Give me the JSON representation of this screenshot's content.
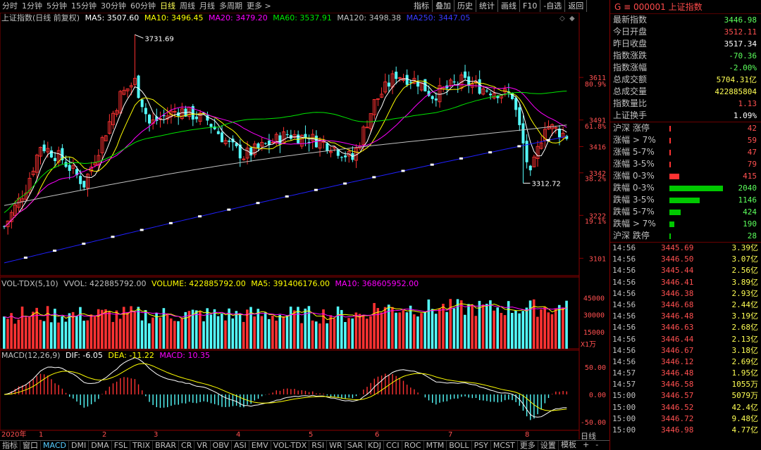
{
  "periods": [
    "分时",
    "1分钟",
    "5分钟",
    "15分钟",
    "30分钟",
    "60分钟",
    "日线",
    "周线",
    "月线",
    "多周期",
    "更多 >"
  ],
  "active_period": "日线",
  "tools": [
    "指标",
    "叠加",
    "历史",
    "统计",
    "画线",
    "F10",
    "-自选",
    "返回"
  ],
  "main_legend": {
    "title": "上证指数(日线 前复权)",
    "ma5": "MA5: 3507.60",
    "ma10": "MA10: 3496.45",
    "ma20": "MA20: 3479.20",
    "ma60": "MA60: 3537.91",
    "ma120": "MA120: 3498.38",
    "ma250": "MA250: 3447.05"
  },
  "vol_legend": {
    "name": "VOL-TDX(5,10)",
    "vvol": "VVOL: 422885792.00",
    "volume": "VOLUME: 422885792.00",
    "ma5": "MA5: 391406176.00",
    "ma10": "MA10: 368605952.00"
  },
  "macd_legend": {
    "name": "MACD(12,26,9)",
    "dif": "DIF: -6.05",
    "dea": "DEA: -11.22",
    "macd": "MACD: 10.35"
  },
  "annotations": {
    "high": "3731.69",
    "low": "3312.72"
  },
  "price_axis": [
    "3611",
    "80.9%",
    "3491",
    "61.8%",
    "3416",
    "3342",
    "38.2%",
    "3222",
    "19.1%",
    "3101"
  ],
  "vol_axis": [
    "45000",
    "30000",
    "15000",
    "X1万"
  ],
  "macd_axis": [
    "50.00",
    "0.00",
    "-50.00"
  ],
  "dates": [
    "2020年",
    "1",
    "2",
    "3",
    "4",
    "5",
    "6",
    "7",
    "8"
  ],
  "colors": {
    "up": "#ff3232",
    "down": "#54fcfc",
    "ma5": "#ffffff",
    "ma10": "#ffff00",
    "ma20": "#ff00ff",
    "ma60": "#00e600",
    "ma120": "#c0c0c0",
    "ma250": "#2020ff"
  },
  "quote": {
    "code_label": "G ≡ 000001  上证指数",
    "rows": [
      {
        "label": "最新指数",
        "value": "3446.98",
        "color": "#5cff5c"
      },
      {
        "label": "今日开盘",
        "value": "3512.11",
        "color": "#ff5050"
      },
      {
        "label": "昨日收盘",
        "value": "3517.34",
        "color": "#ffffff"
      },
      {
        "label": "指数涨跌",
        "value": "-70.36",
        "color": "#5cff5c"
      },
      {
        "label": "指数涨幅",
        "value": "-2.00%",
        "color": "#5cff5c"
      },
      {
        "label": "总成交额",
        "value": "5704.31亿",
        "color": "#ffff54"
      },
      {
        "label": "总成交量",
        "value": "422885804",
        "color": "#ffff54"
      },
      {
        "label": "指数量比",
        "value": "1.13",
        "color": "#ff5050"
      },
      {
        "label": "上证换手",
        "value": "1.09%",
        "color": "#ffffff"
      }
    ],
    "breadth": [
      {
        "label": "沪深 涨停",
        "value": "42",
        "pct": 0.01,
        "color": "#ff3232"
      },
      {
        "label": "涨幅 > 7%",
        "value": "59",
        "pct": 0.01,
        "color": "#ff3232"
      },
      {
        "label": "涨幅 5-7%",
        "value": "47",
        "pct": 0.01,
        "color": "#ff3232"
      },
      {
        "label": "涨幅 3-5%",
        "value": "79",
        "pct": 0.03,
        "color": "#ff3232"
      },
      {
        "label": "涨幅 0-3%",
        "value": "415",
        "pct": 0.18,
        "color": "#ff3232"
      },
      {
        "label": "跌幅 0-3%",
        "value": "2040",
        "pct": 1.0,
        "color": "#00c800"
      },
      {
        "label": "跌幅 3-5%",
        "value": "1146",
        "pct": 0.56,
        "color": "#00c800"
      },
      {
        "label": "跌幅 5-7%",
        "value": "424",
        "pct": 0.21,
        "color": "#00c800"
      },
      {
        "label": "跌幅 > 7%",
        "value": "190",
        "pct": 0.09,
        "color": "#00c800"
      },
      {
        "label": "沪深 跌停",
        "value": "28",
        "pct": 0.01,
        "color": "#00c800"
      }
    ],
    "ticks": [
      {
        "t": "14:56",
        "p": "3445.69",
        "v": "3.39亿"
      },
      {
        "t": "14:56",
        "p": "3446.50",
        "v": "3.07亿"
      },
      {
        "t": "14:56",
        "p": "3445.44",
        "v": "2.56亿"
      },
      {
        "t": "14:56",
        "p": "3446.41",
        "v": "3.89亿"
      },
      {
        "t": "14:56",
        "p": "3446.38",
        "v": "2.93亿"
      },
      {
        "t": "14:56",
        "p": "3446.68",
        "v": "2.44亿"
      },
      {
        "t": "14:56",
        "p": "3446.48",
        "v": "3.19亿"
      },
      {
        "t": "14:56",
        "p": "3446.63",
        "p2": "",
        "v": "2.68亿"
      },
      {
        "t": "14:56",
        "p": "3446.44",
        "v": "2.13亿"
      },
      {
        "t": "14:56",
        "p": "3446.67",
        "v": "3.18亿"
      },
      {
        "t": "14:56",
        "p": "3446.12",
        "v": "2.69亿"
      },
      {
        "t": "14:57",
        "p": "3446.48",
        "v": "1.95亿"
      },
      {
        "t": "14:57",
        "p": "3446.58",
        "v": "1055万"
      },
      {
        "t": "15:00",
        "p": "3446.57",
        "v": "5079万"
      },
      {
        "t": "15:00",
        "p": "3446.52",
        "v": "42.4亿"
      },
      {
        "t": "15:00",
        "p": "3446.72",
        "v": "9.48亿"
      },
      {
        "t": "15:00",
        "p": "3446.98",
        "v": "4.77亿"
      }
    ]
  },
  "bottom_tabs": [
    "指标",
    "窗口",
    "MACD",
    "DMI",
    "DMA",
    "FSL",
    "TRIX",
    "BRAR",
    "CR",
    "VR",
    "OBV",
    "ASI",
    "EMV",
    "VOL-TDX",
    "RSI",
    "WR",
    "SAR",
    "KDJ",
    "CCI",
    "ROC",
    "MTM",
    "BOLL",
    "PSY",
    "MCST",
    "更多",
    "设置"
  ],
  "active_tab": "MACD",
  "bottom_right": [
    "模板",
    "+",
    "-"
  ],
  "period_label": "日线"
}
